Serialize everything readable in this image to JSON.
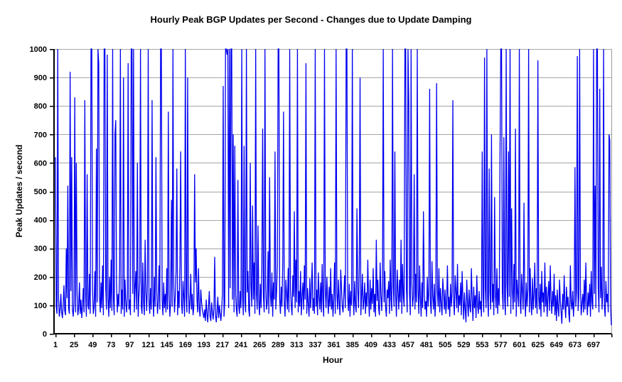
{
  "chart": {
    "title": "Hourly Peak BGP Updates per Second - Changes due to Update Damping",
    "xlabel": "Hour",
    "ylabel": "Peak Updates / second"
  },
  "chart_data": {
    "type": "line",
    "title": "Hourly Peak BGP Updates per Second - Changes due to Update Damping",
    "xlabel": "Hour",
    "ylabel": "Peak Updates / second",
    "legend": "none",
    "grid": "horizontal",
    "xlim": [
      1,
      720
    ],
    "ylim": [
      0,
      1000
    ],
    "x_start": 1,
    "x_step": 1,
    "x_ticks": [
      1,
      25,
      49,
      73,
      97,
      121,
      145,
      169,
      193,
      217,
      241,
      265,
      289,
      313,
      337,
      361,
      385,
      409,
      433,
      457,
      481,
      505,
      529,
      553,
      577,
      601,
      625,
      649,
      673,
      697
    ],
    "y_ticks": [
      0,
      100,
      200,
      300,
      400,
      500,
      600,
      700,
      800,
      900,
      1000
    ],
    "line_color": "#0000f0",
    "gridline_color": "#a6a6a6",
    "plot_border_color": "#9a9a9a",
    "axis_color": "#000000",
    "values": [
      620,
      95,
      70,
      1000,
      120,
      60,
      85,
      140,
      75,
      55,
      100,
      170,
      80,
      65,
      300,
      125,
      520,
      90,
      70,
      920,
      150,
      620,
      85,
      60,
      110,
      830,
      75,
      600,
      140,
      65,
      90,
      180,
      70,
      120,
      55,
      95,
      160,
      75,
      820,
      130,
      60,
      560,
      100,
      85,
      210,
      70,
      1000,
      1000,
      150,
      70,
      95,
      220,
      60,
      650,
      110,
      1000,
      950,
      130,
      75,
      180,
      90,
      240,
      65,
      1000,
      1000,
      160,
      85,
      980,
      120,
      60,
      200,
      90,
      260,
      80,
      1000,
      120,
      65,
      700,
      750,
      180,
      75,
      140,
      95,
      230,
      1000,
      70,
      155,
      85,
      900,
      60,
      190,
      110,
      75,
      130,
      950,
      85,
      120,
      65,
      1000,
      1000,
      140,
      1000,
      75,
      160,
      220,
      85,
      600,
      60,
      130,
      180,
      1000,
      95,
      70,
      250,
      110,
      65,
      330,
      145,
      80,
      175,
      1000,
      110,
      70,
      160,
      85,
      820,
      130,
      60,
      200,
      95,
      620,
      150,
      70,
      115,
      240,
      85,
      1000,
      1000,
      120,
      65,
      180,
      90,
      140,
      75,
      230,
      85,
      780,
      140,
      60,
      110,
      470,
      95,
      1000,
      170,
      75,
      130,
      220,
      580,
      65,
      150,
      90,
      250,
      640,
      110,
      70,
      185,
      125,
      60,
      1000,
      130,
      75,
      900,
      160,
      70,
      115,
      210,
      85,
      140,
      65,
      95,
      560,
      180,
      300,
      120,
      75,
      230,
      90,
      60,
      155,
      110,
      85,
      70,
      55,
      85,
      45,
      120,
      70,
      40,
      95,
      150,
      60,
      45,
      110,
      75,
      50,
      90,
      270,
      65,
      40,
      80,
      130,
      55,
      100,
      70,
      45,
      85,
      140,
      870,
      60,
      110,
      1000,
      1000,
      980,
      1000,
      90,
      1000,
      160,
      1000,
      1000,
      120,
      700,
      75,
      660,
      135,
      85,
      60,
      540,
      100,
      70,
      150,
      90,
      1000,
      130,
      65,
      660,
      110,
      75,
      1000,
      145,
      220,
      85,
      60,
      600,
      170,
      95,
      450,
      120,
      250,
      70,
      1000,
      140,
      85,
      380,
      115,
      65,
      175,
      90,
      235,
      720,
      130,
      75,
      1000,
      160,
      85,
      110,
      290,
      70,
      550,
      135,
      95,
      215,
      60,
      180,
      120,
      640,
      85,
      145,
      240,
      1000,
      1000,
      120,
      70,
      165,
      95,
      250,
      780,
      110,
      60,
      190,
      140,
      85,
      230,
      75,
      1000,
      155,
      100,
      65,
      205,
      130,
      430,
      90,
      260,
      110,
      1000,
      75,
      150,
      95,
      220,
      65,
      130,
      180,
      85,
      240,
      120,
      950,
      70,
      160,
      105,
      60,
      195,
      90,
      145,
      250,
      80,
      125,
      70,
      1000,
      95,
      155,
      65,
      215,
      130,
      85,
      180,
      75,
      245,
      110,
      60,
      1000,
      150,
      90,
      200,
      125,
      70,
      165,
      95,
      230,
      85,
      140,
      60,
      120,
      250,
      70,
      1000,
      145,
      85,
      190,
      110,
      65,
      225,
      160,
      95,
      75,
      135,
      205,
      90,
      1000,
      1000,
      125,
      80,
      175,
      60,
      150,
      100,
      1000,
      140,
      65,
      185,
      100,
      75,
      440,
      155,
      90,
      235,
      900,
      65,
      130,
      210,
      85,
      115,
      180,
      70,
      145,
      95,
      260,
      125,
      60,
      190,
      85,
      160,
      105,
      230,
      75,
      140,
      60,
      330,
      115,
      190,
      90,
      65,
      250,
      135,
      80,
      170,
      1000,
      110,
      220,
      95,
      60,
      155,
      125,
      185,
      70,
      260,
      120,
      80,
      1000,
      165,
      95,
      640,
      135,
      60,
      225,
      150,
      85,
      190,
      110,
      330,
      70,
      245,
      130,
      95,
      1000,
      1000,
      155,
      75,
      1000,
      810,
      140,
      65,
      1000,
      175,
      95,
      130,
      560,
      85,
      210,
      110,
      1000,
      155,
      70,
      240,
      125,
      60,
      180,
      90,
      430,
      145,
      85,
      115,
      60,
      200,
      95,
      145,
      860,
      110,
      70,
      255,
      130,
      85,
      175,
      60,
      120,
      880,
      150,
      95,
      230,
      75,
      160,
      105,
      65,
      195,
      140,
      85,
      155,
      70,
      110,
      240,
      85,
      130,
      60,
      175,
      95,
      145,
      820,
      115,
      65,
      205,
      150,
      90,
      245,
      75,
      135,
      100,
      180,
      65,
      220,
      125,
      50,
      145,
      85,
      40,
      190,
      110,
      60,
      155,
      95,
      75,
      230,
      120,
      45,
      165,
      90,
      135,
      55,
      205,
      100,
      70,
      150,
      85,
      115,
      60,
      640,
      130,
      75,
      970,
      160,
      90,
      1000,
      125,
      60,
      580,
      145,
      85,
      700,
      110,
      175,
      65,
      480,
      135,
      90,
      230,
      70,
      160,
      100,
      620,
      1000,
      1000,
      150,
      85,
      690,
      120,
      65,
      1000,
      175,
      95,
      640,
      130,
      1000,
      70,
      440,
      155,
      85,
      245,
      110,
      720,
      60,
      190,
      140,
      95,
      1000,
      115,
      70,
      210,
      145,
      85,
      460,
      125,
      60,
      180,
      95,
      155,
      1000,
      75,
      230,
      110,
      65,
      195,
      85,
      140,
      250,
      90,
      160,
      70,
      960,
      130,
      85,
      175,
      60,
      220,
      110,
      145,
      75,
      250,
      95,
      165,
      60,
      130,
      185,
      80,
      240,
      120,
      70,
      150,
      95,
      210,
      65,
      135,
      45,
      155,
      90,
      60,
      190,
      115,
      75,
      35,
      140,
      85,
      205,
      100,
      55,
      165,
      95,
      130,
      70,
      40,
      240,
      110,
      85,
      150,
      60,
      120,
      585,
      95,
      150,
      975,
      80,
      130,
      1000,
      160,
      65,
      105,
      140,
      75,
      190,
      85,
      250,
      120,
      65,
      145,
      95,
      175,
      60,
      220,
      110,
      85,
      1000,
      140,
      520,
      90,
      1000,
      1000,
      165,
      75,
      860,
      125,
      235,
      85,
      150,
      1000,
      95,
      60,
      185,
      110,
      140,
      75,
      700,
      680,
      95,
      30
    ]
  }
}
